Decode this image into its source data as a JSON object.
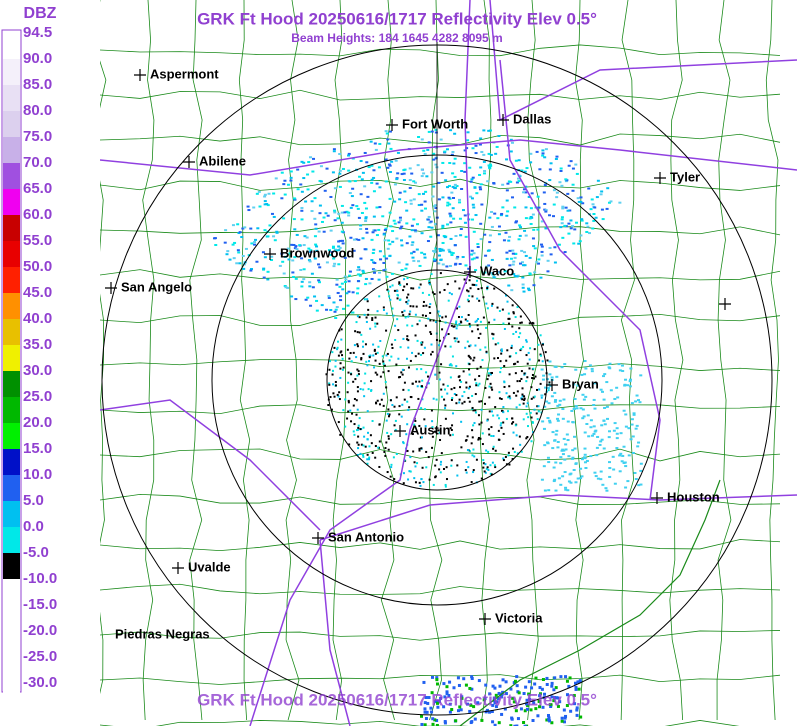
{
  "header": {
    "title": "GRK Ft Hood 20250616/1717 Reflectivity Elev 0.5°",
    "subtitle": "Beam Heights: 184 1645 4282 8095 m"
  },
  "legend": {
    "title": "DBZ",
    "entries": [
      {
        "label": "94.5",
        "color": "#ffffff"
      },
      {
        "label": "90.0",
        "color": "#f4f0fa"
      },
      {
        "label": "85.0",
        "color": "#e8e0f4"
      },
      {
        "label": "80.0",
        "color": "#dcd0ee"
      },
      {
        "label": "75.0",
        "color": "#c8b0e8"
      },
      {
        "label": "70.0",
        "color": "#a050e0"
      },
      {
        "label": "65.0",
        "color": "#f000f0"
      },
      {
        "label": "60.0",
        "color": "#c80000"
      },
      {
        "label": "55.0",
        "color": "#e80000"
      },
      {
        "label": "50.0",
        "color": "#ff2000"
      },
      {
        "label": "45.0",
        "color": "#ff9000"
      },
      {
        "label": "40.0",
        "color": "#e8c000"
      },
      {
        "label": "35.0",
        "color": "#f0f000"
      },
      {
        "label": "30.0",
        "color": "#009000"
      },
      {
        "label": "25.0",
        "color": "#00b800"
      },
      {
        "label": "20.0",
        "color": "#00f000"
      },
      {
        "label": "15.0",
        "color": "#0010c8"
      },
      {
        "label": "10.0",
        "color": "#2060f0"
      },
      {
        "label": "5.0",
        "color": "#00c0f0"
      },
      {
        "label": "0.0",
        "color": "#00e8e8"
      },
      {
        "label": "-5.0",
        "color": "#000000"
      },
      {
        "label": "-10.0",
        "color": "#ffffff"
      },
      {
        "label": "-15.0",
        "color": "#ffffff"
      },
      {
        "label": "-20.0",
        "color": "#ffffff"
      },
      {
        "label": "-25.0",
        "color": "#ffffff"
      },
      {
        "label": "-30.0",
        "color": "#ffffff"
      }
    ]
  },
  "cities": [
    "Aspermont",
    "Fort Worth",
    "Dallas",
    "Abilene",
    "Tyler",
    "Brownwood",
    "Waco",
    "San Angelo",
    "Bryan",
    "Austin",
    "Houston",
    "San Antonio",
    "Uvalde",
    "Victoria",
    "Piedras Negras"
  ],
  "footer": {
    "title": "GRK Ft Hood 20250616/1717 Reflectivity Elev 0.5°"
  }
}
